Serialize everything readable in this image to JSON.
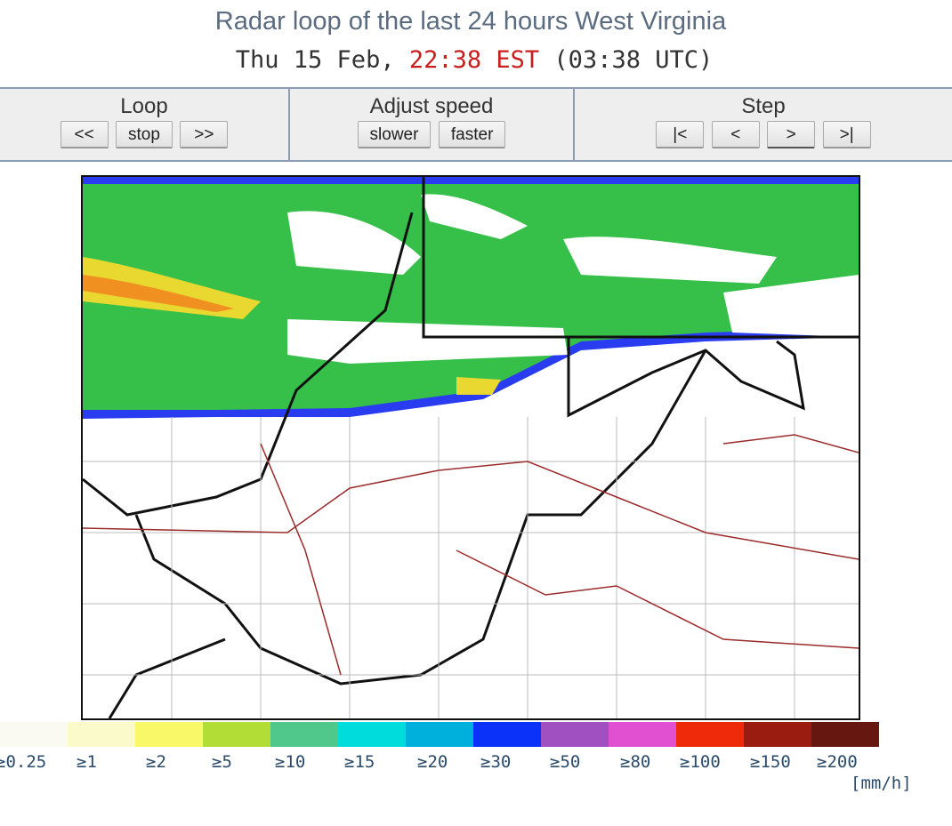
{
  "header": {
    "title": "Radar loop of the last 24 hours West Virginia",
    "date": "Thu 15 Feb,",
    "local_time": "22:38 EST",
    "utc_time": "(03:38 UTC)"
  },
  "controls": {
    "loop": {
      "label": "Loop",
      "buttons": [
        "<<",
        "stop",
        ">>"
      ]
    },
    "speed": {
      "label": "Adjust speed",
      "buttons": [
        "slower",
        "faster"
      ]
    },
    "step": {
      "label": "Step",
      "buttons": [
        "|<",
        "<",
        ">",
        ">|"
      ]
    }
  },
  "legend": {
    "unit": "[mm/h]",
    "items": [
      {
        "label": "≥0.25",
        "color": "#fafaf2"
      },
      {
        "label": "≥1",
        "color": "#fafacb"
      },
      {
        "label": "≥2",
        "color": "#f8f868"
      },
      {
        "label": "≥5",
        "color": "#b2dc36"
      },
      {
        "label": "≥10",
        "color": "#50c88c"
      },
      {
        "label": "≥15",
        "color": "#00dcdc"
      },
      {
        "label": "≥20",
        "color": "#00b0dc"
      },
      {
        "label": "≥30",
        "color": "#0a32f8"
      },
      {
        "label": "≥50",
        "color": "#a050c0"
      },
      {
        "label": "≥80",
        "color": "#e050d0"
      },
      {
        "label": "≥100",
        "color": "#ee2a0a"
      },
      {
        "label": "≥150",
        "color": "#9a1c10"
      },
      {
        "label": "≥200",
        "color": "#661810"
      }
    ]
  }
}
